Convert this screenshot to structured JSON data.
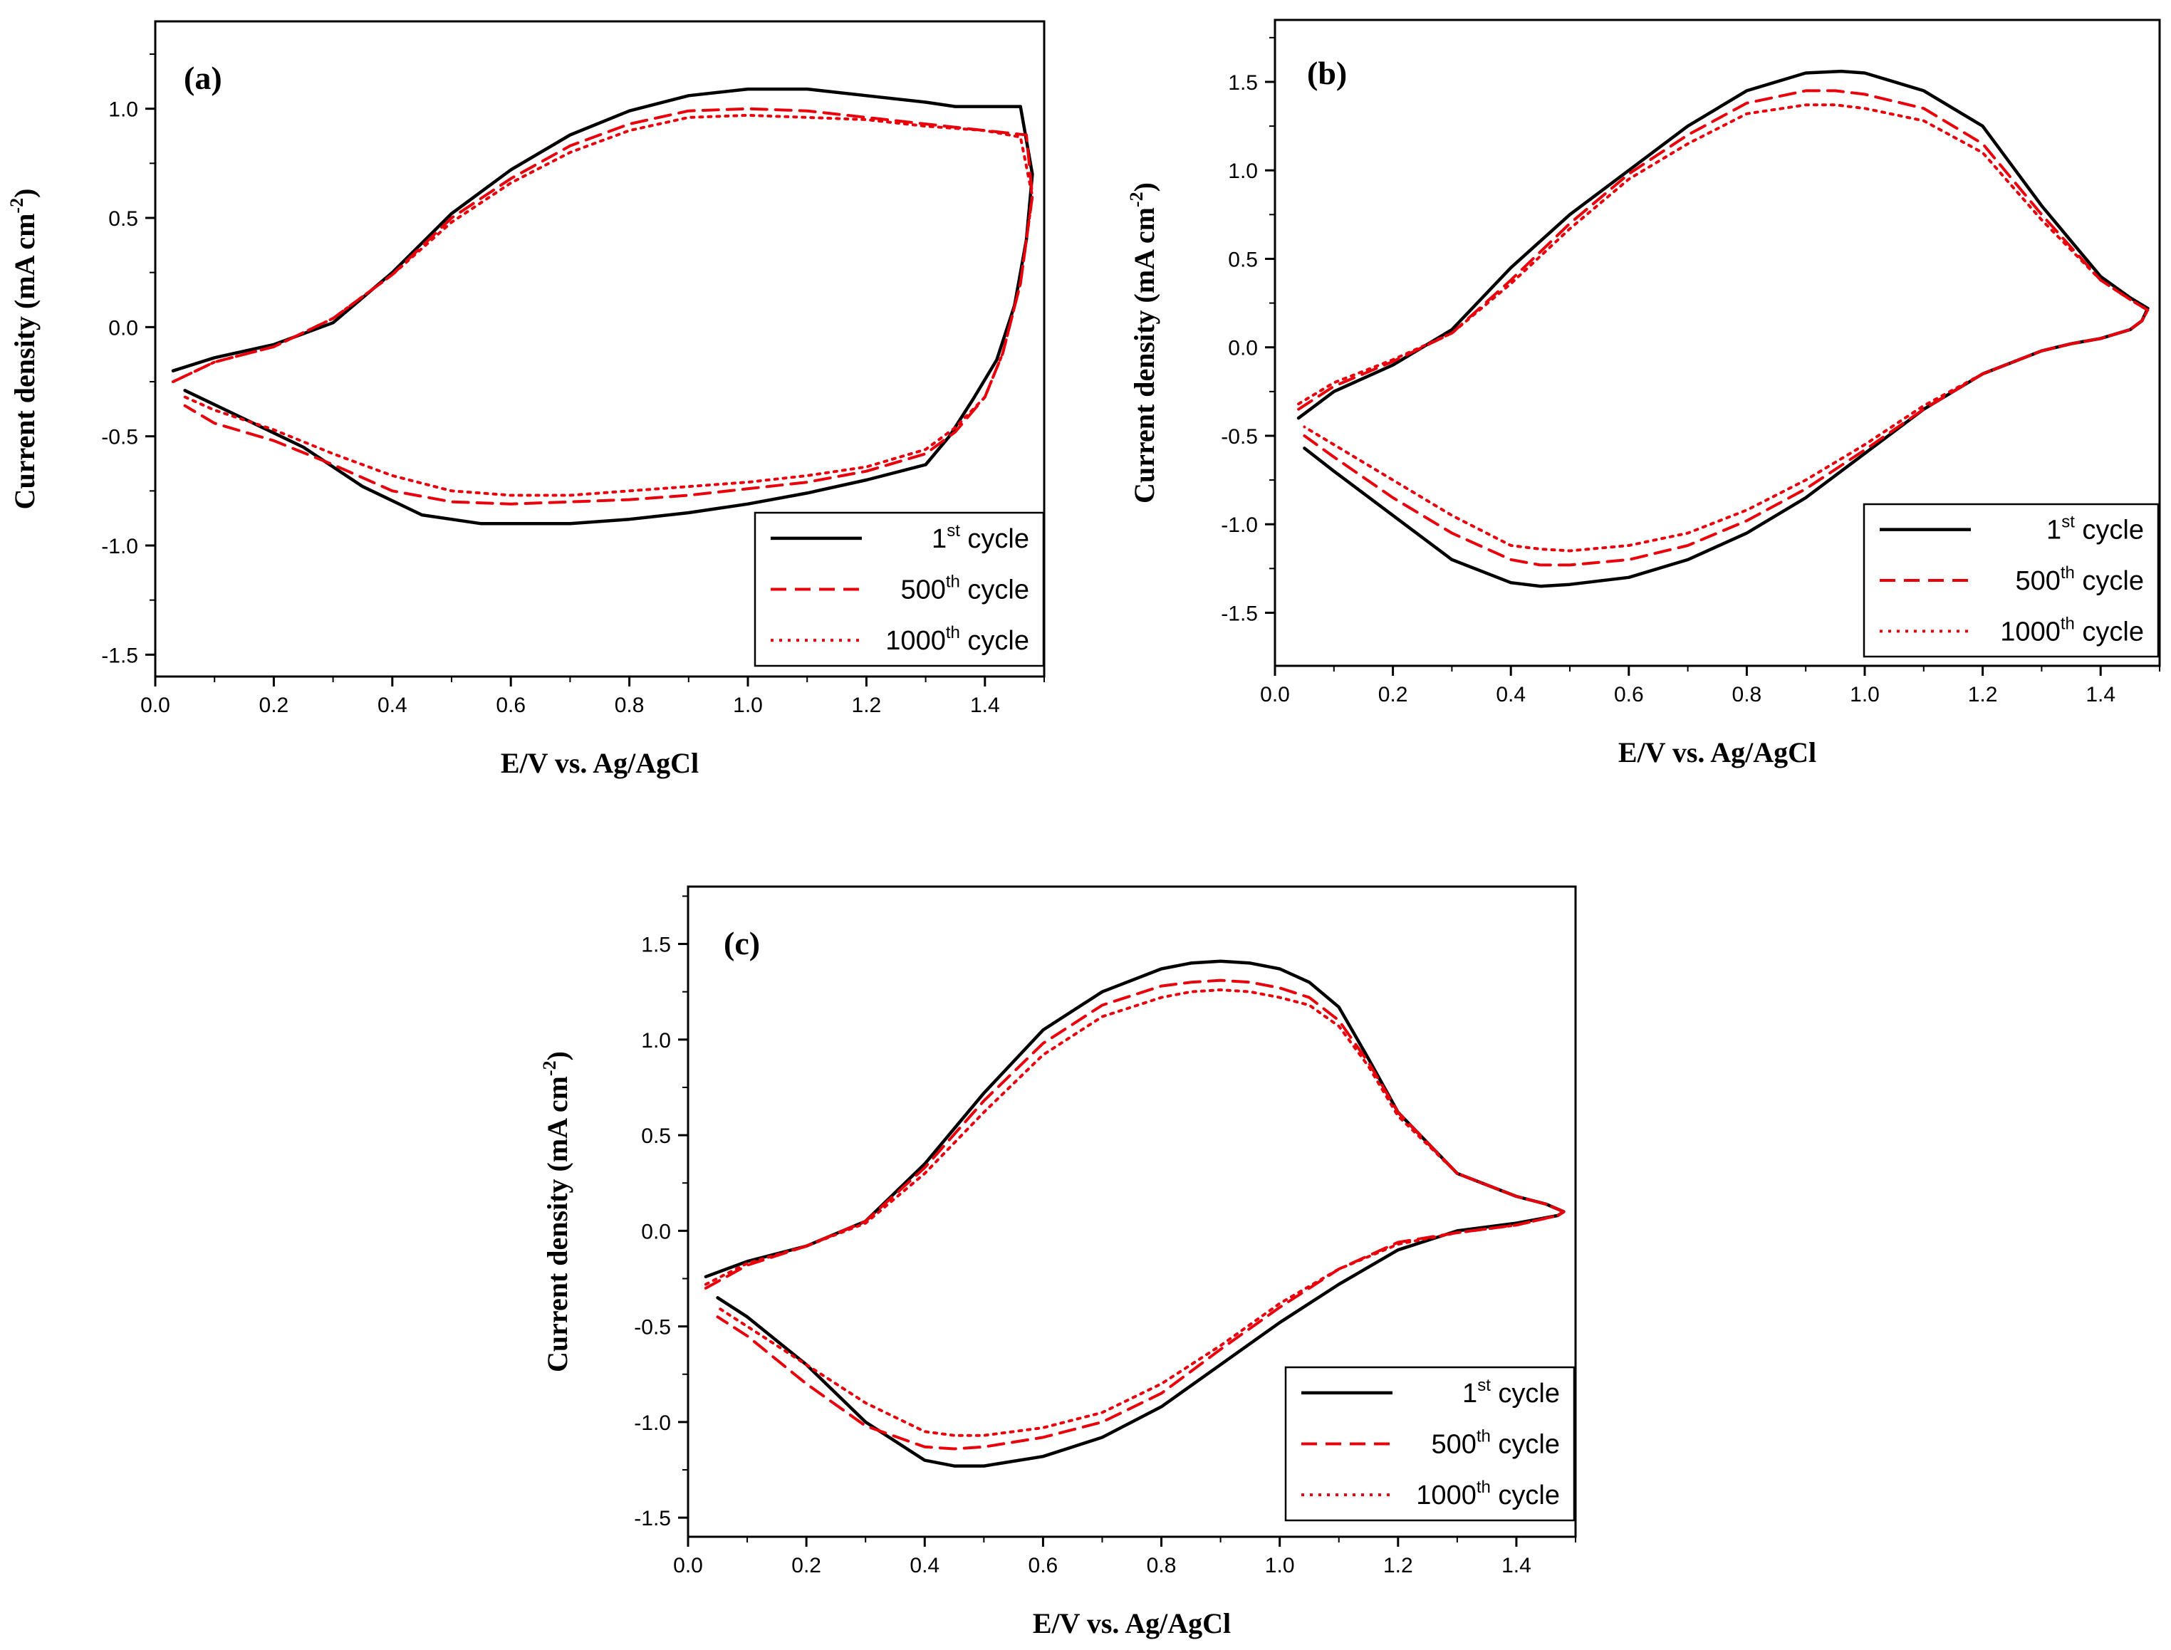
{
  "chart_data": [
    {
      "type": "line",
      "panel_label": "(a)",
      "xlabel": "E/V vs. Ag/AgCl",
      "ylabel": "Current density (mA cm",
      "ylabel_sup": "-2",
      "ylabel_close": ")",
      "xlim": [
        0.0,
        1.5
      ],
      "ylim": [
        -1.6,
        1.4
      ],
      "xticks": [
        "0.0",
        "0.2",
        "0.4",
        "0.6",
        "0.8",
        "1.0",
        "1.2",
        "1.4"
      ],
      "yticks": [
        "-1.5",
        "-1.0",
        "-0.5",
        "0.0",
        "0.5",
        "1.0"
      ],
      "legend_position": "bottom-right",
      "series": [
        {
          "name": "1st cycle",
          "name_prefix": "1",
          "name_sup": "st",
          "name_suffix": " cycle",
          "color": "#000000",
          "style": "solid",
          "x": [
            0.03,
            0.1,
            0.2,
            0.3,
            0.4,
            0.5,
            0.6,
            0.7,
            0.8,
            0.9,
            1.0,
            1.1,
            1.2,
            1.3,
            1.35,
            1.4,
            1.45,
            1.46,
            1.48,
            1.47,
            1.45,
            1.42,
            1.38,
            1.34,
            1.3,
            1.2,
            1.1,
            1.0,
            0.9,
            0.8,
            0.7,
            0.6,
            0.55,
            0.45,
            0.35,
            0.25,
            0.15,
            0.05
          ],
          "y": [
            -0.2,
            -0.14,
            -0.08,
            0.02,
            0.25,
            0.52,
            0.72,
            0.88,
            0.99,
            1.06,
            1.09,
            1.09,
            1.06,
            1.03,
            1.01,
            1.01,
            1.01,
            1.01,
            0.7,
            0.4,
            0.1,
            -0.15,
            -0.33,
            -0.5,
            -0.63,
            -0.7,
            -0.76,
            -0.81,
            -0.85,
            -0.88,
            -0.9,
            -0.9,
            -0.9,
            -0.86,
            -0.73,
            -0.55,
            -0.42,
            -0.29
          ]
        },
        {
          "name": "500th cycle",
          "name_prefix": "500",
          "name_sup": "th",
          "name_suffix": " cycle",
          "color": "#e8000b",
          "style": "dashed",
          "x": [
            0.03,
            0.1,
            0.2,
            0.3,
            0.4,
            0.5,
            0.6,
            0.7,
            0.8,
            0.9,
            1.0,
            1.1,
            1.2,
            1.3,
            1.4,
            1.47,
            1.48,
            1.46,
            1.43,
            1.4,
            1.35,
            1.3,
            1.2,
            1.1,
            1.0,
            0.9,
            0.8,
            0.7,
            0.6,
            0.5,
            0.4,
            0.3,
            0.2,
            0.1,
            0.05
          ],
          "y": [
            -0.25,
            -0.16,
            -0.09,
            0.04,
            0.24,
            0.5,
            0.68,
            0.83,
            0.93,
            0.99,
            1.0,
            0.99,
            0.96,
            0.93,
            0.9,
            0.88,
            0.6,
            0.2,
            -0.12,
            -0.32,
            -0.48,
            -0.58,
            -0.66,
            -0.71,
            -0.74,
            -0.77,
            -0.79,
            -0.8,
            -0.81,
            -0.8,
            -0.75,
            -0.63,
            -0.52,
            -0.44,
            -0.36
          ]
        },
        {
          "name": "1000th cycle",
          "name_prefix": "1000",
          "name_sup": "th",
          "name_suffix": " cycle",
          "color": "#e8000b",
          "style": "dotted",
          "x": [
            0.03,
            0.1,
            0.2,
            0.3,
            0.4,
            0.5,
            0.6,
            0.7,
            0.8,
            0.9,
            1.0,
            1.1,
            1.2,
            1.3,
            1.4,
            1.46,
            1.48,
            1.46,
            1.43,
            1.4,
            1.35,
            1.3,
            1.2,
            1.1,
            1.0,
            0.9,
            0.8,
            0.7,
            0.6,
            0.5,
            0.4,
            0.3,
            0.2,
            0.1,
            0.05
          ],
          "y": [
            -0.25,
            -0.16,
            -0.09,
            0.04,
            0.24,
            0.48,
            0.66,
            0.8,
            0.9,
            0.96,
            0.97,
            0.96,
            0.95,
            0.92,
            0.9,
            0.87,
            0.6,
            0.2,
            -0.12,
            -0.32,
            -0.46,
            -0.56,
            -0.64,
            -0.68,
            -0.71,
            -0.73,
            -0.75,
            -0.77,
            -0.77,
            -0.75,
            -0.68,
            -0.58,
            -0.47,
            -0.38,
            -0.32
          ]
        }
      ]
    },
    {
      "type": "line",
      "panel_label": "(b)",
      "xlabel": "E/V vs. Ag/AgCl",
      "ylabel": "Current density (mA cm",
      "ylabel_sup": "-2",
      "ylabel_close": ")",
      "xlim": [
        0.0,
        1.5
      ],
      "ylim": [
        -1.8,
        1.85
      ],
      "xticks": [
        "0.0",
        "0.2",
        "0.4",
        "0.6",
        "0.8",
        "1.0",
        "1.2",
        "1.4"
      ],
      "yticks": [
        "-1.5",
        "-1.0",
        "-0.5",
        "0.0",
        "0.5",
        "1.0",
        "1.5"
      ],
      "legend_position": "bottom-right",
      "series": [
        {
          "name": "1st cycle",
          "name_prefix": "1",
          "name_sup": "st",
          "name_suffix": " cycle",
          "color": "#000000",
          "style": "solid",
          "x": [
            0.04,
            0.1,
            0.2,
            0.3,
            0.4,
            0.5,
            0.6,
            0.7,
            0.8,
            0.9,
            0.96,
            1.0,
            1.1,
            1.2,
            1.3,
            1.4,
            1.45,
            1.48,
            1.47,
            1.45,
            1.4,
            1.35,
            1.3,
            1.2,
            1.1,
            1.0,
            0.9,
            0.8,
            0.7,
            0.6,
            0.5,
            0.45,
            0.4,
            0.3,
            0.2,
            0.1,
            0.05
          ],
          "y": [
            -0.4,
            -0.25,
            -0.1,
            0.1,
            0.45,
            0.75,
            1.0,
            1.25,
            1.45,
            1.55,
            1.56,
            1.55,
            1.45,
            1.25,
            0.8,
            0.4,
            0.28,
            0.22,
            0.15,
            0.1,
            0.05,
            0.02,
            -0.02,
            -0.15,
            -0.35,
            -0.6,
            -0.85,
            -1.05,
            -1.2,
            -1.3,
            -1.34,
            -1.35,
            -1.33,
            -1.2,
            -0.95,
            -0.7,
            -0.57
          ]
        },
        {
          "name": "500th cycle",
          "name_prefix": "500",
          "name_sup": "th",
          "name_suffix": " cycle",
          "color": "#e8000b",
          "style": "dashed",
          "x": [
            0.04,
            0.1,
            0.2,
            0.3,
            0.4,
            0.5,
            0.6,
            0.7,
            0.8,
            0.9,
            0.95,
            1.0,
            1.1,
            1.2,
            1.3,
            1.4,
            1.45,
            1.48,
            1.47,
            1.45,
            1.4,
            1.35,
            1.3,
            1.2,
            1.1,
            1.0,
            0.9,
            0.8,
            0.7,
            0.6,
            0.5,
            0.45,
            0.4,
            0.3,
            0.2,
            0.1,
            0.05
          ],
          "y": [
            -0.35,
            -0.22,
            -0.08,
            0.08,
            0.38,
            0.7,
            0.98,
            1.2,
            1.38,
            1.45,
            1.45,
            1.43,
            1.35,
            1.15,
            0.75,
            0.38,
            0.27,
            0.21,
            0.15,
            0.1,
            0.05,
            0.02,
            -0.02,
            -0.15,
            -0.35,
            -0.58,
            -0.8,
            -0.98,
            -1.12,
            -1.2,
            -1.23,
            -1.23,
            -1.2,
            -1.05,
            -0.85,
            -0.62,
            -0.5
          ]
        },
        {
          "name": "1000th cycle",
          "name_prefix": "1000",
          "name_sup": "th",
          "name_suffix": " cycle",
          "color": "#e8000b",
          "style": "dotted",
          "x": [
            0.04,
            0.1,
            0.2,
            0.3,
            0.4,
            0.5,
            0.6,
            0.7,
            0.8,
            0.9,
            0.95,
            1.0,
            1.1,
            1.2,
            1.3,
            1.4,
            1.45,
            1.48,
            1.47,
            1.45,
            1.4,
            1.35,
            1.3,
            1.2,
            1.1,
            1.0,
            0.9,
            0.8,
            0.7,
            0.6,
            0.5,
            0.45,
            0.4,
            0.3,
            0.2,
            0.1,
            0.05
          ],
          "y": [
            -0.32,
            -0.2,
            -0.07,
            0.08,
            0.36,
            0.67,
            0.95,
            1.15,
            1.32,
            1.37,
            1.37,
            1.35,
            1.28,
            1.1,
            0.72,
            0.38,
            0.27,
            0.21,
            0.15,
            0.1,
            0.05,
            0.02,
            -0.02,
            -0.15,
            -0.33,
            -0.55,
            -0.75,
            -0.92,
            -1.05,
            -1.12,
            -1.15,
            -1.14,
            -1.12,
            -0.95,
            -0.75,
            -0.55,
            -0.45
          ]
        }
      ]
    },
    {
      "type": "line",
      "panel_label": "(c)",
      "xlabel": "E/V vs. Ag/AgCl",
      "ylabel": "Current density (mA cm",
      "ylabel_sup": "-2",
      "ylabel_close": ")",
      "xlim": [
        0.0,
        1.5
      ],
      "ylim": [
        -1.6,
        1.8
      ],
      "xticks": [
        "0.0",
        "0.2",
        "0.4",
        "0.6",
        "0.8",
        "1.0",
        "1.2",
        "1.4"
      ],
      "yticks": [
        "-1.5",
        "-1.0",
        "-0.5",
        "0.0",
        "0.5",
        "1.0",
        "1.5"
      ],
      "legend_position": "bottom-right",
      "series": [
        {
          "name": "1st cycle",
          "name_prefix": "1",
          "name_sup": "st",
          "name_suffix": " cycle",
          "color": "#000000",
          "style": "solid",
          "x": [
            0.03,
            0.1,
            0.2,
            0.3,
            0.4,
            0.5,
            0.6,
            0.7,
            0.8,
            0.85,
            0.9,
            0.95,
            1.0,
            1.05,
            1.1,
            1.15,
            1.2,
            1.3,
            1.4,
            1.45,
            1.48,
            1.47,
            1.4,
            1.3,
            1.2,
            1.1,
            1.0,
            0.9,
            0.8,
            0.7,
            0.6,
            0.5,
            0.45,
            0.4,
            0.3,
            0.2,
            0.1,
            0.05
          ],
          "y": [
            -0.24,
            -0.16,
            -0.08,
            0.05,
            0.35,
            0.72,
            1.05,
            1.25,
            1.37,
            1.4,
            1.41,
            1.4,
            1.37,
            1.3,
            1.17,
            0.9,
            0.62,
            0.3,
            0.18,
            0.14,
            0.1,
            0.08,
            0.04,
            0.0,
            -0.1,
            -0.28,
            -0.48,
            -0.7,
            -0.92,
            -1.08,
            -1.18,
            -1.23,
            -1.23,
            -1.2,
            -1.0,
            -0.7,
            -0.45,
            -0.35
          ]
        },
        {
          "name": "500th cycle",
          "name_prefix": "500",
          "name_sup": "th",
          "name_suffix": " cycle",
          "color": "#e8000b",
          "style": "dashed",
          "x": [
            0.03,
            0.1,
            0.2,
            0.3,
            0.4,
            0.5,
            0.6,
            0.7,
            0.8,
            0.85,
            0.9,
            0.95,
            1.0,
            1.05,
            1.1,
            1.15,
            1.2,
            1.3,
            1.4,
            1.45,
            1.48,
            1.47,
            1.4,
            1.3,
            1.2,
            1.1,
            1.0,
            0.9,
            0.8,
            0.7,
            0.6,
            0.5,
            0.45,
            0.4,
            0.3,
            0.2,
            0.1,
            0.05
          ],
          "y": [
            -0.3,
            -0.18,
            -0.08,
            0.05,
            0.33,
            0.68,
            0.98,
            1.18,
            1.28,
            1.3,
            1.31,
            1.3,
            1.27,
            1.22,
            1.1,
            0.88,
            0.62,
            0.3,
            0.18,
            0.14,
            0.1,
            0.08,
            0.03,
            -0.01,
            -0.06,
            -0.2,
            -0.4,
            -0.62,
            -0.85,
            -1.0,
            -1.08,
            -1.13,
            -1.14,
            -1.13,
            -1.02,
            -0.8,
            -0.55,
            -0.45
          ]
        },
        {
          "name": "1000th cycle",
          "name_prefix": "1000",
          "name_sup": "th",
          "name_suffix": " cycle",
          "color": "#e8000b",
          "style": "dotted",
          "x": [
            0.03,
            0.1,
            0.2,
            0.3,
            0.4,
            0.5,
            0.6,
            0.7,
            0.8,
            0.85,
            0.9,
            0.95,
            1.0,
            1.05,
            1.1,
            1.15,
            1.2,
            1.3,
            1.4,
            1.45,
            1.48,
            1.47,
            1.4,
            1.3,
            1.2,
            1.1,
            1.0,
            0.9,
            0.8,
            0.7,
            0.6,
            0.5,
            0.45,
            0.4,
            0.3,
            0.2,
            0.1,
            0.05
          ],
          "y": [
            -0.28,
            -0.17,
            -0.08,
            0.04,
            0.3,
            0.62,
            0.92,
            1.12,
            1.22,
            1.25,
            1.26,
            1.25,
            1.22,
            1.18,
            1.07,
            0.86,
            0.6,
            0.3,
            0.18,
            0.14,
            0.1,
            0.08,
            0.03,
            -0.01,
            -0.07,
            -0.2,
            -0.38,
            -0.6,
            -0.8,
            -0.95,
            -1.03,
            -1.07,
            -1.07,
            -1.05,
            -0.9,
            -0.7,
            -0.5,
            -0.4
          ]
        }
      ]
    }
  ]
}
